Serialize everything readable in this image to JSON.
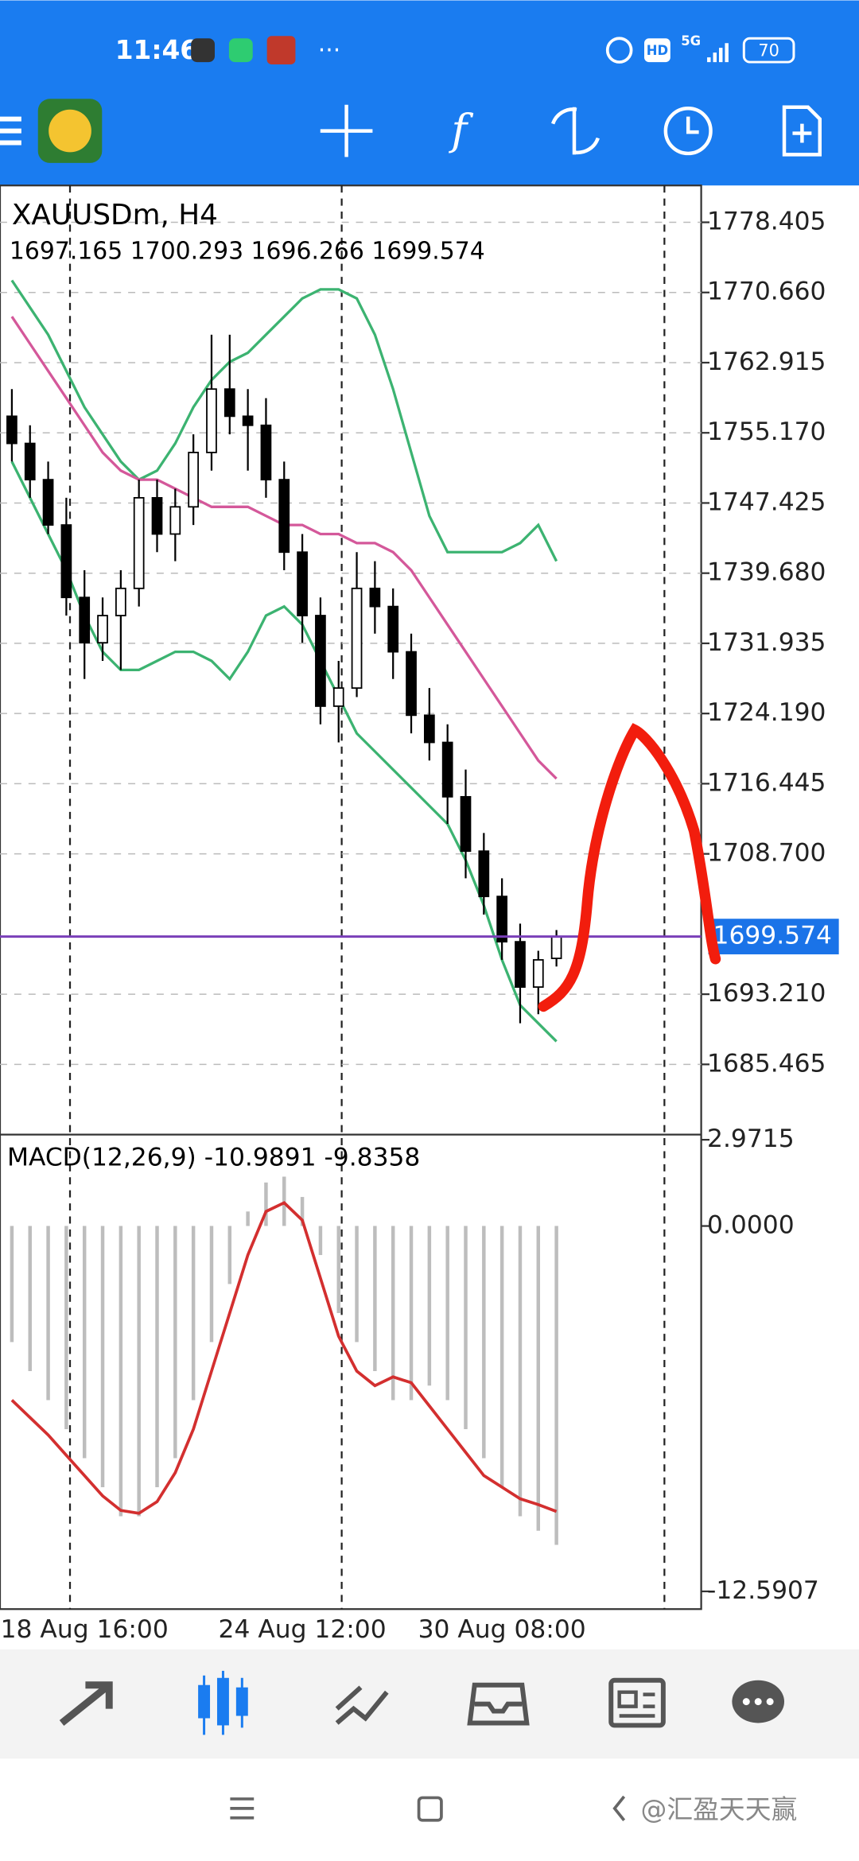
{
  "status_bar": {
    "time": "11:46",
    "more": "···",
    "hd": "HD",
    "network": "5G",
    "battery": "70"
  },
  "chart_data": [
    {
      "type": "candlestick",
      "title": "XAUUSDm, H4",
      "categories": [
        null,
        null,
        null,
        null,
        "18 Aug 16:00",
        null,
        null,
        null,
        null,
        null,
        null,
        null,
        null,
        null,
        null,
        null,
        "24 Aug 12:00",
        null,
        null,
        null,
        null,
        null,
        null,
        null,
        null,
        null,
        null,
        "30 Aug 08:00",
        null,
        null,
        null
      ],
      "open": [
        1757,
        1754,
        1750,
        1745,
        1737,
        1732,
        1735,
        1738,
        1748,
        1744,
        1747,
        1753,
        1760,
        1757,
        1756,
        1750,
        1742,
        1735,
        1725,
        1727,
        1738,
        1736,
        1731,
        1724,
        1721,
        1715,
        1709,
        1704,
        1699,
        1694,
        1697.165
      ],
      "high": [
        1760,
        1756,
        1752,
        1748,
        1740,
        1737,
        1740,
        1750,
        1750,
        1749,
        1755,
        1766,
        1766,
        1760,
        1759,
        1752,
        1744,
        1737,
        1730,
        1742,
        1741,
        1738,
        1733,
        1727,
        1723,
        1718,
        1711,
        1706,
        1701,
        1698,
        1700.293
      ],
      "low": [
        1752,
        1748,
        1744,
        1735,
        1728,
        1730,
        1729,
        1736,
        1742,
        1741,
        1745,
        1751,
        1755,
        1751,
        1748,
        1740,
        1732,
        1723,
        1721,
        1726,
        1733,
        1728,
        1722,
        1719,
        1712,
        1706,
        1702,
        1697,
        1690,
        1691,
        1696.266
      ],
      "close": [
        1754,
        1750,
        1745,
        1737,
        1732,
        1735,
        1738,
        1748,
        1744,
        1747,
        1753,
        1760,
        1757,
        1756,
        1750,
        1742,
        1735,
        1725,
        1727,
        1738,
        1736,
        1731,
        1724,
        1721,
        1715,
        1709,
        1704,
        1699,
        1694,
        1697,
        1699.574
      ],
      "series": [
        {
          "color": "#3cb371",
          "values": [
            1772,
            1769,
            1766,
            1762,
            1758,
            1755,
            1752,
            1750,
            1751,
            1754,
            1758,
            1761,
            1763,
            1764,
            1766,
            1768,
            1770,
            1771,
            1771,
            1770,
            1766,
            1760,
            1753,
            1746,
            1742,
            1742,
            1742,
            1742,
            1743,
            1745,
            1741
          ]
        },
        {
          "color": "#d4589a",
          "values": [
            1768,
            1765,
            1762,
            1759,
            1756,
            1753,
            1751,
            1750,
            1750,
            1749,
            1748,
            1747,
            1747,
            1747,
            1746,
            1745,
            1745,
            1744,
            1744,
            1743,
            1743,
            1742,
            1740,
            1737,
            1734,
            1731,
            1728,
            1725,
            1722,
            1719,
            1717
          ]
        },
        {
          "color": "#3cb371",
          "values": [
            1752,
            1748,
            1744,
            1740,
            1735,
            1731,
            1729,
            1729,
            1730,
            1731,
            1731,
            1730,
            1728,
            1731,
            1735,
            1736,
            1734,
            1730,
            1726,
            1722,
            1720,
            1718,
            1716,
            1714,
            1712,
            1708,
            1703,
            1697,
            1692,
            1690,
            1688
          ]
        }
      ],
      "ylim": [
        1677.72,
        1782.47
      ],
      "yticks": [
        1778.405,
        {
          "value": 1770.66,
          "label": "1770.660"
        },
        1762.915,
        {
          "value": 1755.17,
          "label": "1755.170"
        },
        1747.425,
        {
          "value": 1739.68,
          "label": "1739.680"
        },
        1731.935,
        {
          "value": 1724.19,
          "label": "1724.190"
        },
        1716.445,
        {
          "value": 1708.7,
          "label": "1708.700"
        },
        {
          "value": 1693.21,
          "label": "1693.210"
        },
        1685.465
      ],
      "current_price_color": "#1a73e8"
    },
    {
      "type": "macd",
      "title": "MACD(12,26,9)",
      "histogram": {
        "color": "#bdbdbd",
        "values": [
          -4,
          -5,
          -6,
          -7,
          -8,
          -9,
          -10,
          -10,
          -9,
          -8,
          -6,
          -4,
          -2,
          0.5,
          1.5,
          1.7,
          1,
          -1,
          -3,
          -4,
          -5,
          -6,
          -6,
          -5.5,
          -6,
          -7,
          -8,
          -9,
          -10,
          -10.5,
          -10.9891
        ]
      },
      "signal": {
        "color": "#d32f2f",
        "values": [
          -6,
          -6.6,
          -7.2,
          -7.9,
          -8.6,
          -9.3,
          -9.8,
          -9.9,
          -9.5,
          -8.5,
          -7,
          -5,
          -3,
          -1,
          0.5,
          0.8,
          0.2,
          -1.8,
          -3.8,
          -5,
          -5.5,
          -5.2,
          -5.4,
          -6.2,
          -7,
          -7.8,
          -8.6,
          -9,
          -9.4,
          -9.6,
          -9.8358
        ]
      },
      "ylim": [
        -13.16,
        3.11
      ],
      "yticks": [
        2.9715,
        {
          "value": 0,
          "label": "0.0000"
        },
        -12.5907
      ]
    }
  ],
  "watermark": "@汇盈天天赢"
}
